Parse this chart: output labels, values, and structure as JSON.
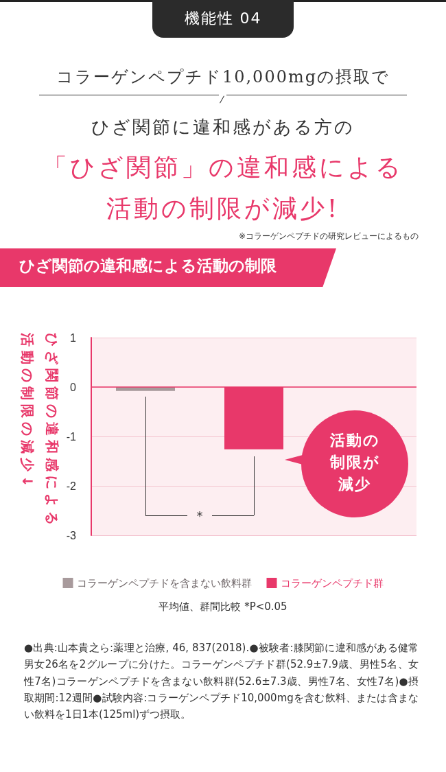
{
  "chart_data": {
    "type": "bar",
    "title": "ひざ関節の違和感による活動の制限",
    "ylabel": "ひざ関節の違和感による活動の制限の減少↓",
    "categories": [
      null,
      null,
      null
    ],
    "series": [
      {
        "name": "コラーゲンペプチドを含まない飲料群",
        "color": "#a89a9c",
        "values": [
          -0.08,
          null,
          null
        ]
      },
      {
        "name": "コラーゲンペプチド群",
        "color": "#e8386a",
        "values": [
          null,
          -1.26,
          null
        ]
      }
    ],
    "ref_lines": [
      {
        "axis": "y",
        "value": 0,
        "color": "#e8386a"
      }
    ],
    "ylim": [
      -3,
      1
    ],
    "yticks": [
      -3,
      -2,
      -1,
      0,
      1
    ],
    "grid": "y",
    "legend": "bottom",
    "annotations": [
      "機能性 04",
      "コラーゲンペプチド10,000mgの摂取で",
      "ひざ関節に違和感がある方の",
      "「ひざ関節」の違和感による",
      "活動の制限が減少!",
      "※コラーゲンペプチドの研究レビューによるもの",
      "活動の制限が減少",
      "*",
      "平均値、群間比較 *P<0.05",
      "●出典:山本貴之ら:薬理と治療, 46, 837(2018).●被験者:膝関節に違和感がある健常男女26名を2グループに分けた。コラーゲンペプチド群(52.9±7.9歳、男性5名、女性7名)コラーゲンペプチドを含まない飲料群(52.6±7.3歳、男性7名、女性7名)●摂取期間:12週間●試験内容:コラーゲンペプチド10,000mgを含む飲料、または含まない飲料を1日1本(125ml)ずつ摂取。"
    ]
  }
}
